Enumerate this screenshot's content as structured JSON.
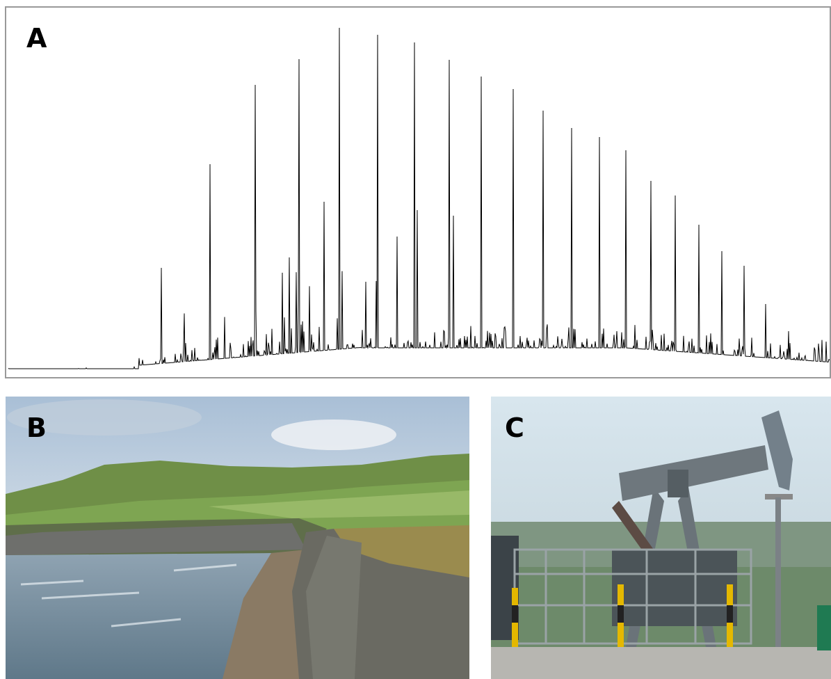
{
  "panels": {
    "a": {
      "label": "A"
    },
    "b": {
      "label": "B"
    },
    "c": {
      "label": "C"
    }
  }
}
